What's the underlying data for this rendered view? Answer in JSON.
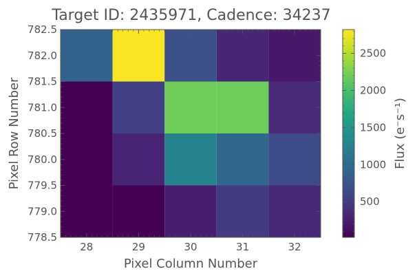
{
  "chart_data": {
    "type": "heatmap",
    "title": "Target ID: 2435971, Cadence: 34237",
    "xlabel": "Pixel Column Number",
    "ylabel": "Pixel Row Number",
    "xlim": [
      27.5,
      32.5
    ],
    "ylim": [
      778.5,
      782.5
    ],
    "x_ticks": [
      "28",
      "29",
      "30",
      "31",
      "32"
    ],
    "y_ticks": [
      "778.5",
      "779.0",
      "779.5",
      "780.0",
      "780.5",
      "781.0",
      "781.5",
      "782.0",
      "782.5"
    ],
    "columns": [
      28,
      29,
      30,
      31,
      32
    ],
    "rows": [
      779,
      780,
      781,
      782
    ],
    "values": [
      [
        20,
        20,
        250,
        500,
        330
      ],
      [
        20,
        300,
        1250,
        950,
        650
      ],
      [
        20,
        550,
        2200,
        2200,
        350
      ],
      [
        900,
        2800,
        700,
        320,
        200
      ]
    ],
    "colormap": "viridis",
    "colorbar": {
      "label": "Flux (e⁻s⁻¹)",
      "min": 20,
      "max": 2820,
      "ticks": [
        "500",
        "1000",
        "1500",
        "2000",
        "2500"
      ]
    },
    "grid": false
  }
}
